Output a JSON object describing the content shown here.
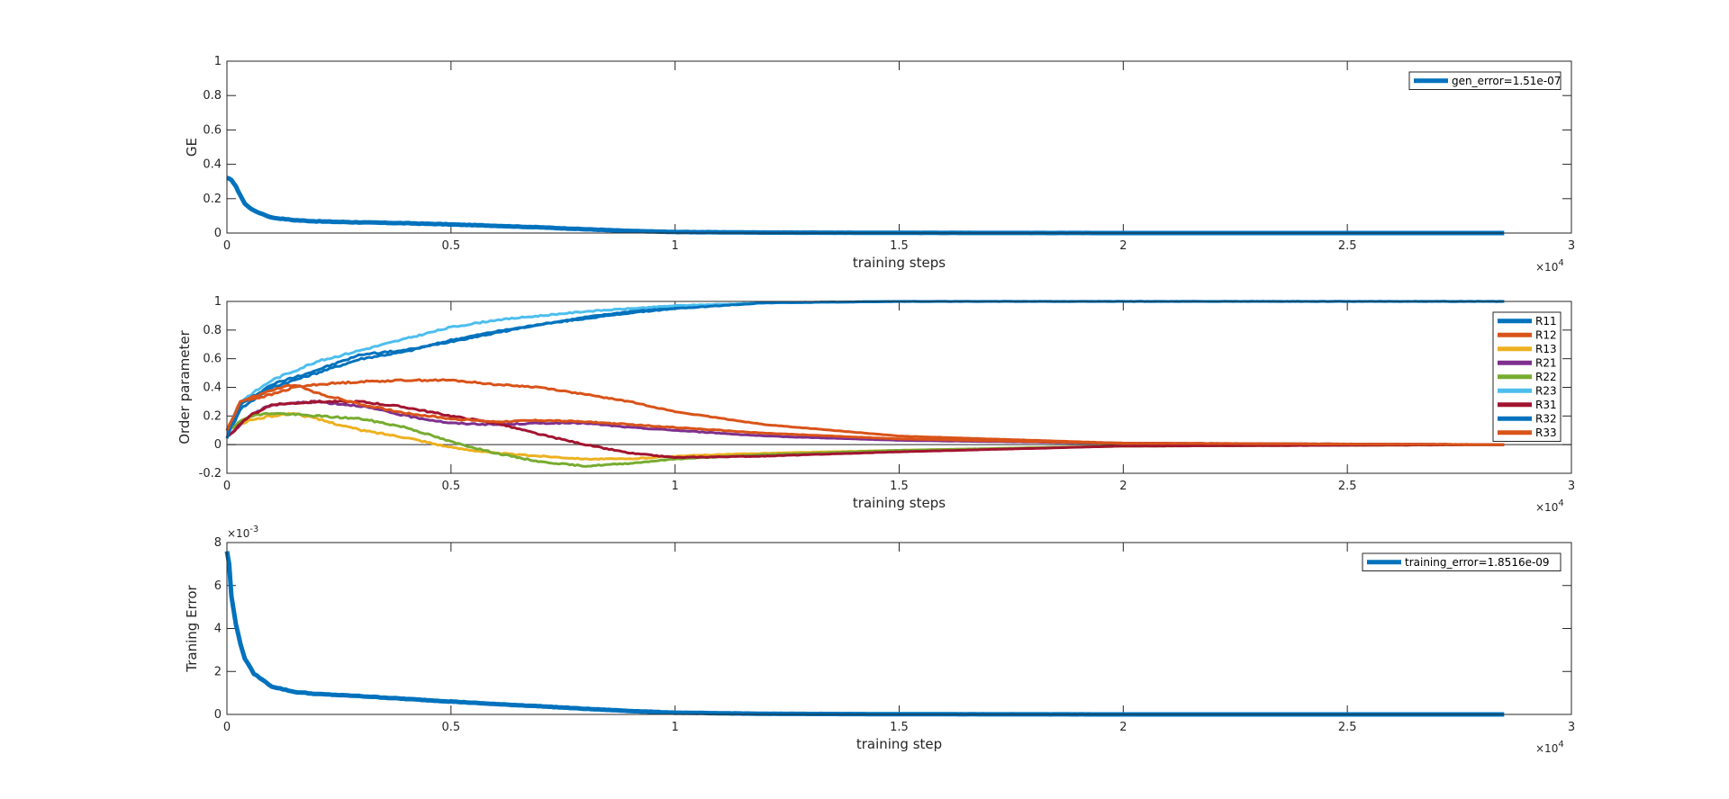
{
  "chart_data": [
    {
      "type": "line",
      "xlabel": "training steps",
      "ylabel": "GE",
      "x_exponent_label": "×10",
      "x_exponent": "4",
      "xlim": [
        0,
        30000
      ],
      "ylim": [
        0,
        1
      ],
      "xticks": [
        0,
        5000,
        10000,
        15000,
        20000,
        25000,
        30000
      ],
      "xtick_labels": [
        "0",
        "0.5",
        "1",
        "1.5",
        "2",
        "2.5",
        "3"
      ],
      "yticks": [
        0,
        0.2,
        0.4,
        0.6,
        0.8,
        1
      ],
      "ytick_labels": [
        "0",
        "0.2",
        "0.4",
        "0.6",
        "0.8",
        "1"
      ],
      "legend_position": "top-right",
      "series": [
        {
          "name": "gen_error=1.51e-07",
          "color": "#0072BD",
          "x": [
            0,
            100,
            200,
            300,
            400,
            600,
            800,
            1000,
            1500,
            2000,
            3000,
            4000,
            5000,
            6000,
            7000,
            8000,
            9000,
            10000,
            12000,
            15000,
            20000,
            25000,
            28500
          ],
          "y": [
            0.32,
            0.31,
            0.27,
            0.22,
            0.17,
            0.13,
            0.11,
            0.09,
            0.075,
            0.068,
            0.062,
            0.057,
            0.05,
            0.042,
            0.033,
            0.022,
            0.012,
            0.006,
            0.003,
            0.001,
            0.0,
            0.0,
            0.0
          ]
        }
      ]
    },
    {
      "type": "line",
      "xlabel": "training steps",
      "ylabel": "Order parameter",
      "x_exponent_label": "×10",
      "x_exponent": "4",
      "xlim": [
        0,
        30000
      ],
      "ylim": [
        -0.2,
        1
      ],
      "xticks": [
        0,
        5000,
        10000,
        15000,
        20000,
        25000,
        30000
      ],
      "xtick_labels": [
        "0",
        "0.5",
        "1",
        "1.5",
        "2",
        "2.5",
        "3"
      ],
      "yticks": [
        -0.2,
        0,
        0.2,
        0.4,
        0.6,
        0.8,
        1
      ],
      "ytick_labels": [
        "-0.2",
        "0",
        "0.2",
        "0.4",
        "0.6",
        "0.8",
        "1"
      ],
      "legend_position": "top-right",
      "series": [
        {
          "name": "R11",
          "color": "#0072BD",
          "x": [
            0,
            300,
            1000,
            2000,
            3000,
            4000,
            5000,
            6000,
            7000,
            8000,
            9000,
            10000,
            12000,
            15000,
            20000,
            28500
          ],
          "y": [
            0.05,
            0.25,
            0.4,
            0.5,
            0.6,
            0.65,
            0.73,
            0.79,
            0.84,
            0.89,
            0.93,
            0.96,
            0.99,
            1.0,
            1.0,
            1.0
          ]
        },
        {
          "name": "R12",
          "color": "#D95319",
          "x": [
            0,
            300,
            1000,
            1500,
            2000,
            3000,
            4000,
            5000,
            6000,
            7000,
            8000,
            9000,
            10000,
            12000,
            15000,
            20000,
            28500
          ],
          "y": [
            0.1,
            0.3,
            0.35,
            0.4,
            0.42,
            0.44,
            0.45,
            0.45,
            0.42,
            0.4,
            0.35,
            0.3,
            0.23,
            0.14,
            0.06,
            0.01,
            0.0
          ]
        },
        {
          "name": "R13",
          "color": "#EDB120",
          "x": [
            0,
            500,
            1000,
            1500,
            2000,
            3000,
            4000,
            5000,
            6000,
            7000,
            8000,
            9000,
            10000,
            12000,
            15000,
            20000,
            28500
          ],
          "y": [
            0.1,
            0.17,
            0.2,
            0.22,
            0.18,
            0.1,
            0.05,
            -0.02,
            -0.06,
            -0.08,
            -0.1,
            -0.1,
            -0.08,
            -0.06,
            -0.04,
            -0.01,
            0.0
          ]
        },
        {
          "name": "R21",
          "color": "#7E2F8E",
          "x": [
            0,
            500,
            1000,
            2000,
            3000,
            4000,
            5000,
            6000,
            7000,
            8000,
            9000,
            10000,
            12000,
            15000,
            20000,
            28500
          ],
          "y": [
            0.05,
            0.2,
            0.28,
            0.3,
            0.27,
            0.2,
            0.15,
            0.14,
            0.15,
            0.15,
            0.12,
            0.1,
            0.06,
            0.03,
            0.01,
            0.0
          ]
        },
        {
          "name": "R22",
          "color": "#77AC30",
          "x": [
            0,
            500,
            1000,
            2000,
            3000,
            4000,
            5000,
            6000,
            7000,
            8000,
            9000,
            10000,
            12000,
            15000,
            20000,
            28500
          ],
          "y": [
            0.1,
            0.2,
            0.22,
            0.2,
            0.18,
            0.12,
            0.02,
            -0.06,
            -0.12,
            -0.15,
            -0.13,
            -0.1,
            -0.07,
            -0.04,
            -0.01,
            0.0
          ]
        },
        {
          "name": "R23",
          "color": "#4DBEEE",
          "x": [
            0,
            300,
            1000,
            2000,
            3000,
            4000,
            5000,
            6000,
            7000,
            8000,
            9000,
            10000,
            12000,
            15000,
            20000,
            28500
          ],
          "y": [
            0.1,
            0.3,
            0.45,
            0.58,
            0.66,
            0.74,
            0.82,
            0.87,
            0.9,
            0.93,
            0.95,
            0.97,
            0.99,
            1.0,
            1.0,
            1.0
          ]
        },
        {
          "name": "R31",
          "color": "#A2142F",
          "x": [
            0,
            500,
            1000,
            2000,
            3000,
            4000,
            5000,
            6000,
            7000,
            8000,
            9000,
            10000,
            12000,
            15000,
            20000,
            28500
          ],
          "y": [
            0.05,
            0.2,
            0.28,
            0.3,
            0.3,
            0.26,
            0.2,
            0.15,
            0.07,
            0.0,
            -0.06,
            -0.09,
            -0.08,
            -0.05,
            -0.01,
            0.0
          ]
        },
        {
          "name": "R32",
          "color": "#0072BD",
          "x": [
            0,
            300,
            1000,
            2000,
            3000,
            4000,
            5000,
            6000,
            7000,
            8000,
            9000,
            10000,
            12000,
            15000,
            20000,
            28500
          ],
          "y": [
            0.05,
            0.28,
            0.42,
            0.52,
            0.63,
            0.66,
            0.72,
            0.78,
            0.84,
            0.88,
            0.92,
            0.95,
            0.99,
            1.0,
            1.0,
            1.0
          ]
        },
        {
          "name": "R33",
          "color": "#D95319",
          "x": [
            0,
            300,
            1000,
            1500,
            2000,
            3000,
            4000,
            5000,
            6000,
            7000,
            8000,
            9000,
            10000,
            12000,
            15000,
            20000,
            28500
          ],
          "y": [
            0.1,
            0.3,
            0.38,
            0.42,
            0.36,
            0.28,
            0.22,
            0.18,
            0.16,
            0.17,
            0.16,
            0.14,
            0.12,
            0.08,
            0.04,
            0.01,
            0.0
          ]
        }
      ]
    },
    {
      "type": "line",
      "xlabel": "training step",
      "ylabel": "Traning Error",
      "x_exponent_label": "×10",
      "x_exponent": "4",
      "y_exponent_label": "×10",
      "y_exponent": "-3",
      "xlim": [
        0,
        30000
      ],
      "ylim": [
        0,
        0.008
      ],
      "xticks": [
        0,
        5000,
        10000,
        15000,
        20000,
        25000,
        30000
      ],
      "xtick_labels": [
        "0",
        "0.5",
        "1",
        "1.5",
        "2",
        "2.5",
        "3"
      ],
      "yticks": [
        0,
        0.002,
        0.004,
        0.006,
        0.008
      ],
      "ytick_labels": [
        "0",
        "2",
        "4",
        "6",
        "8"
      ],
      "legend_position": "top-right",
      "series": [
        {
          "name": "training_error=1.8516e-09",
          "color": "#0072BD",
          "x": [
            0,
            50,
            100,
            200,
            300,
            400,
            600,
            800,
            1000,
            1500,
            2000,
            3000,
            4000,
            5000,
            6000,
            7000,
            8000,
            9000,
            10000,
            12000,
            15000,
            20000,
            25000,
            28500
          ],
          "y": [
            0.0076,
            0.007,
            0.0055,
            0.0042,
            0.0033,
            0.0026,
            0.0019,
            0.0016,
            0.0013,
            0.00105,
            0.00095,
            0.00085,
            0.00072,
            0.0006,
            0.00048,
            0.00038,
            0.00026,
            0.00016,
            8e-05,
            3e-05,
            1e-05,
            0.0,
            0.0,
            0.0
          ]
        }
      ]
    }
  ]
}
